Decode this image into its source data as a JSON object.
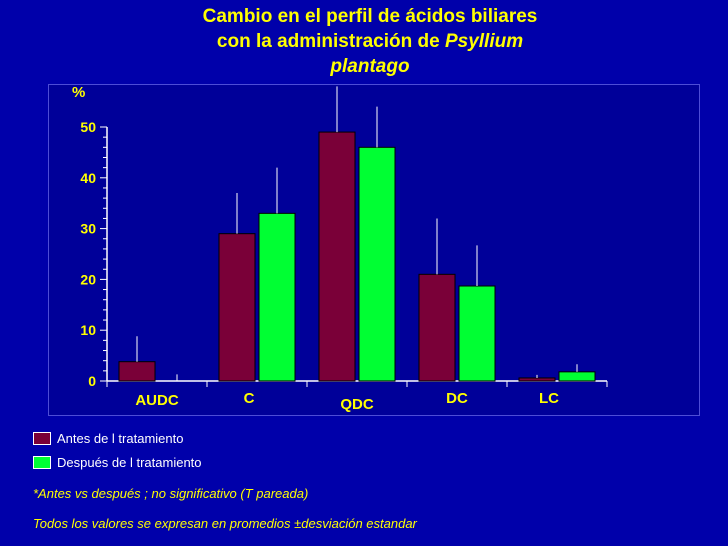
{
  "title": {
    "line1": "Cambio en el perfil de ácidos biliares",
    "line2_prefix": "con la administración de ",
    "line2_italic": "Psyllium",
    "line3_italic": "plantago"
  },
  "colors": {
    "background": "#0000aa",
    "before": "#7a0038",
    "after": "#00ff33",
    "axis": "#ffffff",
    "text": "#ffff00"
  },
  "chart_data": {
    "type": "bar",
    "title": "Cambio en el perfil de ácidos biliares con la administración de Psyllium plantago",
    "ylabel": "%",
    "xlabel": "",
    "ylim": [
      0,
      50
    ],
    "yticks": [
      0,
      10,
      20,
      30,
      40,
      50
    ],
    "categories": [
      "AUDC",
      "C",
      "QDC",
      "DC",
      "LC"
    ],
    "series": [
      {
        "name": "Antes de l tratamiento",
        "color": "#7a0038",
        "values": [
          3.8,
          29,
          49,
          21,
          0.6
        ],
        "error": [
          5,
          8,
          9,
          11,
          0.6
        ]
      },
      {
        "name": "Después de l tratamiento",
        "color": "#00ff33",
        "values": [
          0,
          33,
          46,
          18.7,
          1.8
        ],
        "error": [
          1.3,
          9,
          8,
          8,
          1.5
        ]
      }
    ],
    "grid": false,
    "legend_position": "bottom-left"
  },
  "legend": {
    "before_label": "Antes de l tratamiento",
    "after_label": "Después de l tratamiento"
  },
  "notes": {
    "significance": "*Antes vs después ; no significativo (T pareada)",
    "values_note": "Todos los valores se expresan en  promedios ±desviación estandar"
  }
}
